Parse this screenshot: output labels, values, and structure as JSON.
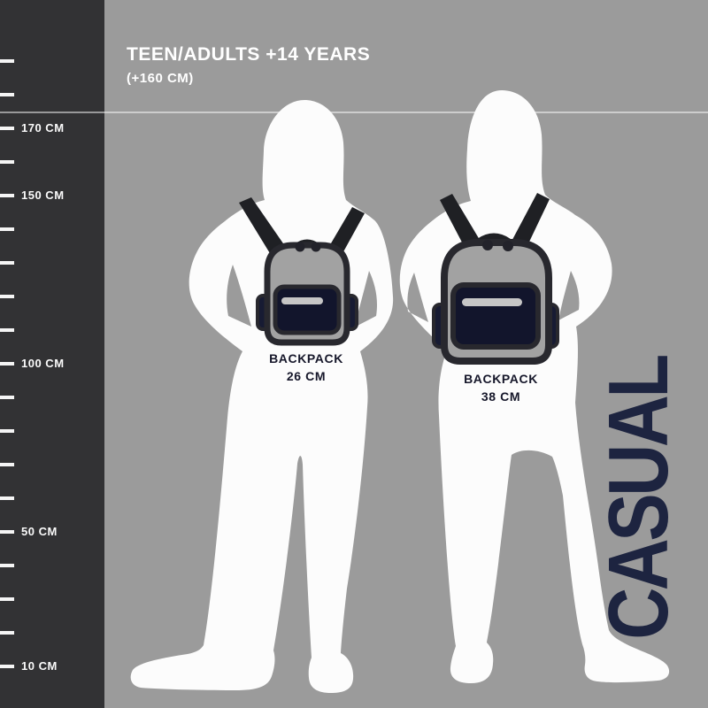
{
  "header": {
    "title": "TEEN/ADULTS +14 YEARS",
    "subtitle": "(+160 CM)"
  },
  "ruler": {
    "unit": "CM",
    "labeled_ticks": [
      {
        "cm": 170,
        "label": "170 CM"
      },
      {
        "cm": 150,
        "label": "150 CM"
      },
      {
        "cm": 100,
        "label": "100 CM"
      },
      {
        "cm": 50,
        "label": "50 CM"
      },
      {
        "cm": 10,
        "label": "10 CM"
      }
    ],
    "minor_ticks_cm": [
      190,
      180,
      160,
      140,
      130,
      120,
      110,
      90,
      80,
      70,
      60,
      40,
      30,
      20
    ]
  },
  "figures": [
    {
      "id": "teen-silhouette",
      "backpack_label_line1": "BACKPACK",
      "backpack_label_line2": "26 CM",
      "backpack_size_cm": 26
    },
    {
      "id": "adult-silhouette",
      "backpack_label_line1": "BACKPACK",
      "backpack_label_line2": "38 CM",
      "backpack_size_cm": 38
    }
  ],
  "side_label": "CASUAL",
  "colors": {
    "background": "#9b9b9b",
    "ruler": "#323234",
    "silhouette": "#fcfcfc",
    "strap_black": "#1f2024",
    "pocket_navy": "#12152c",
    "label_navy": "#16172a",
    "wordmark_navy": "#1d2440",
    "zipper_gray": "#c6c6c6"
  }
}
